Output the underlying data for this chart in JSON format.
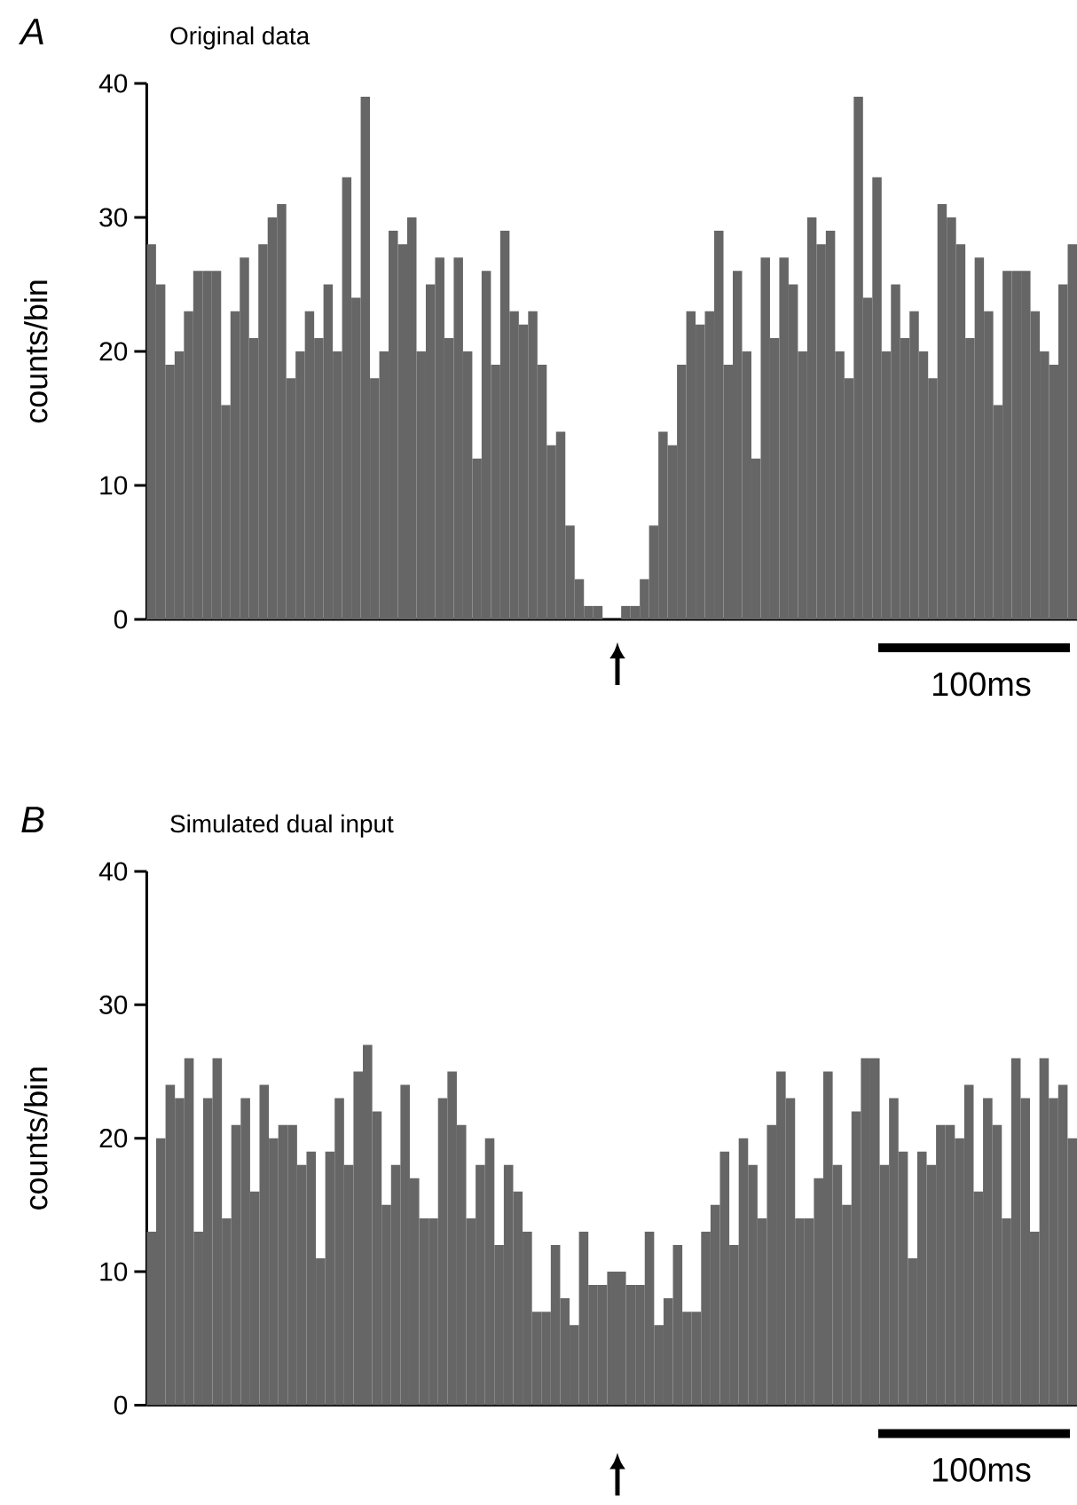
{
  "chart_data": [
    {
      "type": "bar",
      "title": "A",
      "subtitle": "Original data",
      "ylabel": "counts/bin",
      "color": "#666666",
      "ylim": [
        0,
        40
      ],
      "yticks": [
        0,
        10,
        20,
        30,
        40
      ],
      "tick_labels": "y",
      "annotations": [
        "100ms"
      ],
      "categories": [
        null,
        null,
        null,
        null,
        null,
        null,
        null,
        null,
        null,
        null,
        null,
        null,
        null,
        null,
        null,
        null,
        null,
        null,
        null,
        null,
        null,
        null,
        null,
        null,
        null,
        null,
        null,
        null,
        null,
        null,
        null,
        null,
        null,
        null,
        null,
        null,
        null,
        null,
        null,
        null,
        null,
        null,
        null,
        null,
        null,
        null,
        null,
        null,
        null,
        null,
        null,
        null,
        null,
        null,
        null,
        null,
        null,
        null,
        null,
        null,
        null,
        null,
        null,
        null,
        null,
        null,
        null,
        null,
        null,
        null,
        null,
        null,
        null,
        null,
        null,
        null,
        null,
        null,
        null,
        null,
        null,
        null,
        null,
        null,
        null,
        null,
        null,
        null,
        null,
        null,
        null,
        null,
        null,
        null,
        null,
        null,
        null,
        null,
        null,
        null
      ],
      "values": [
        28,
        25,
        19,
        20,
        23,
        26,
        26,
        26,
        16,
        23,
        27,
        21,
        28,
        30,
        31,
        18,
        20,
        23,
        21,
        25,
        20,
        33,
        24,
        39,
        18,
        20,
        29,
        28,
        30,
        20,
        25,
        27,
        21,
        27,
        20,
        12,
        26,
        19,
        29,
        23,
        22,
        23,
        19,
        13,
        14,
        7,
        3,
        1,
        1,
        0,
        0,
        1,
        1,
        3,
        7,
        14,
        13,
        19,
        23,
        22,
        23,
        29,
        19,
        26,
        20,
        12,
        27,
        21,
        27,
        25,
        20,
        30,
        28,
        29,
        20,
        18,
        39,
        24,
        33,
        20,
        25,
        21,
        23,
        20,
        18,
        31,
        30,
        28,
        21,
        27,
        23,
        16,
        26,
        26,
        26,
        23,
        20,
        19,
        25,
        28
      ]
    },
    {
      "type": "bar",
      "title": "B",
      "subtitle": "Simulated dual input",
      "ylabel": "counts/bin",
      "color": "#666666",
      "ylim": [
        0,
        40
      ],
      "yticks": [
        0,
        10,
        20,
        30,
        40
      ],
      "tick_labels": "y",
      "annotations": [
        "100ms"
      ],
      "categories": [
        null,
        null,
        null,
        null,
        null,
        null,
        null,
        null,
        null,
        null,
        null,
        null,
        null,
        null,
        null,
        null,
        null,
        null,
        null,
        null,
        null,
        null,
        null,
        null,
        null,
        null,
        null,
        null,
        null,
        null,
        null,
        null,
        null,
        null,
        null,
        null,
        null,
        null,
        null,
        null,
        null,
        null,
        null,
        null,
        null,
        null,
        null,
        null,
        null,
        null,
        null,
        null,
        null,
        null,
        null,
        null,
        null,
        null,
        null,
        null,
        null,
        null,
        null,
        null,
        null,
        null,
        null,
        null,
        null,
        null,
        null,
        null,
        null,
        null,
        null,
        null,
        null,
        null,
        null,
        null,
        null,
        null,
        null,
        null,
        null,
        null,
        null,
        null,
        null,
        null,
        null,
        null,
        null,
        null,
        null,
        null,
        null,
        null,
        null
      ],
      "values": [
        13,
        20,
        24,
        23,
        26,
        13,
        23,
        26,
        14,
        21,
        23,
        16,
        24,
        20,
        21,
        21,
        18,
        19,
        11,
        19,
        23,
        18,
        25,
        27,
        22,
        15,
        18,
        24,
        17,
        14,
        14,
        23,
        25,
        21,
        14,
        18,
        20,
        12,
        18,
        16,
        13,
        7,
        7,
        12,
        8,
        6,
        13,
        9,
        9,
        10,
        10,
        9,
        9,
        13,
        6,
        8,
        12,
        7,
        7,
        13,
        15,
        19,
        12,
        20,
        18,
        14,
        21,
        25,
        23,
        14,
        14,
        17,
        25,
        18,
        15,
        22,
        26,
        26,
        18,
        23,
        19,
        11,
        19,
        18,
        21,
        21,
        20,
        24,
        16,
        23,
        21,
        14,
        26,
        23,
        13,
        26,
        23,
        24,
        20
      ]
    }
  ]
}
